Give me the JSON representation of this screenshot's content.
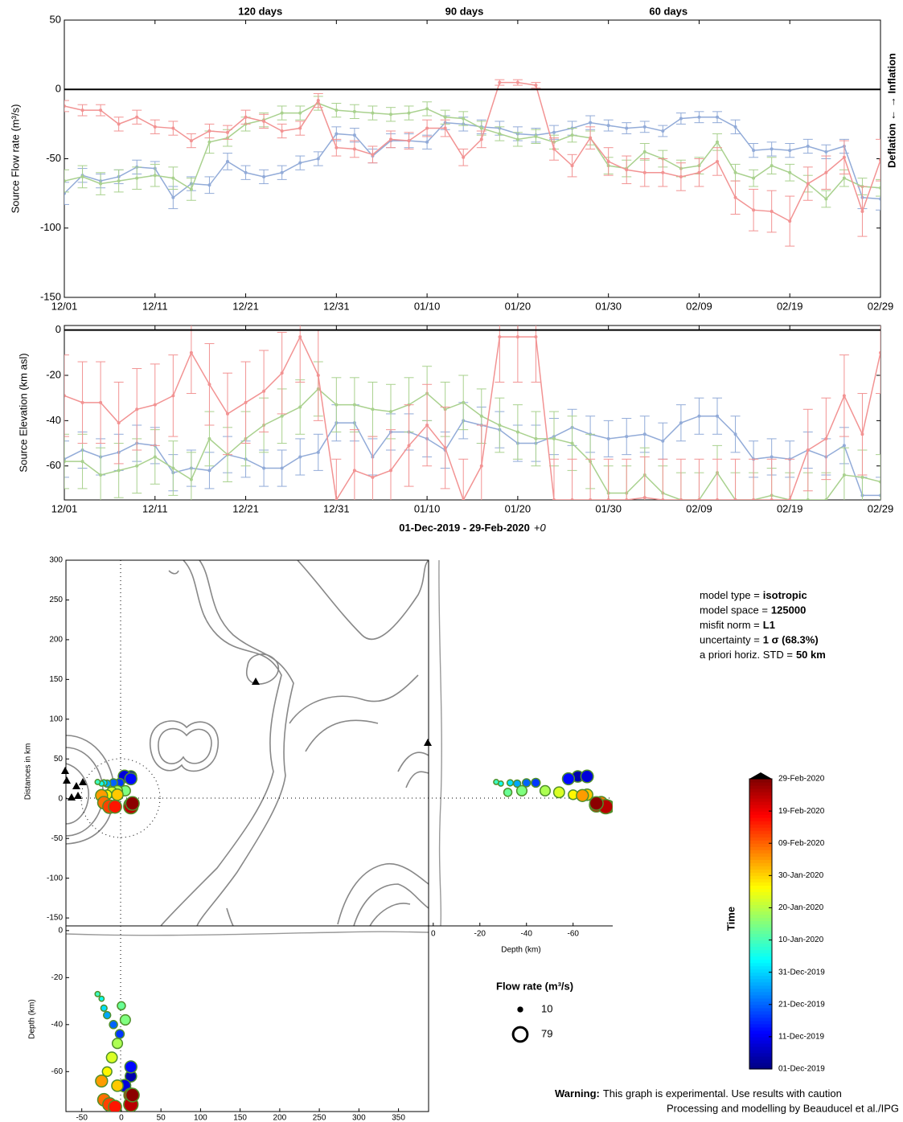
{
  "chart_data": [
    {
      "type": "line",
      "ylabel": "Source Flow rate (m³/s)",
      "right_label": "Deflation ← → Inflation",
      "zero_line": true,
      "xlim": [
        "2019-12-01",
        "2020-02-29"
      ],
      "xticks": [
        {
          "value": "2019-12-01",
          "label": "12/01"
        },
        {
          "value": "2019-12-11",
          "label": "12/11"
        },
        {
          "value": "2019-12-21",
          "label": "12/21"
        },
        {
          "value": "2019-12-31",
          "label": "12/31"
        },
        {
          "value": "2020-01-10",
          "label": "01/10"
        },
        {
          "value": "2020-01-20",
          "label": "01/20"
        },
        {
          "value": "2020-01-30",
          "label": "01/30"
        },
        {
          "value": "2020-02-09",
          "label": "02/09"
        },
        {
          "value": "2020-02-19",
          "label": "02/19"
        },
        {
          "value": "2020-02-29",
          "label": "02/29"
        }
      ],
      "ylim": [
        -150,
        50
      ],
      "yticks": [
        50,
        0,
        -50,
        -100,
        -150
      ],
      "x": [
        "2019-12-01",
        "2019-12-03",
        "2019-12-05",
        "2019-12-07",
        "2019-12-09",
        "2019-12-11",
        "2019-12-13",
        "2019-12-15",
        "2019-12-17",
        "2019-12-19",
        "2019-12-21",
        "2019-12-23",
        "2019-12-25",
        "2019-12-27",
        "2019-12-29",
        "2019-12-31",
        "2020-01-02",
        "2020-01-04",
        "2020-01-06",
        "2020-01-08",
        "2020-01-10",
        "2020-01-12",
        "2020-01-14",
        "2020-01-16",
        "2020-01-18",
        "2020-01-20",
        "2020-01-22",
        "2020-01-24",
        "2020-01-26",
        "2020-01-28",
        "2020-01-30",
        "2020-02-01",
        "2020-02-03",
        "2020-02-05",
        "2020-02-07",
        "2020-02-09",
        "2020-02-11",
        "2020-02-13",
        "2020-02-15",
        "2020-02-17",
        "2020-02-19",
        "2020-02-21",
        "2020-02-23",
        "2020-02-25",
        "2020-02-27",
        "2020-02-29"
      ],
      "series": [
        {
          "name": "120 days",
          "color": "#92abd8",
          "label_color": "#3a62a8",
          "values": [
            -75,
            -62,
            -66,
            -63,
            -56,
            -57,
            -78,
            -68,
            -69,
            -52,
            -60,
            -63,
            -60,
            -53,
            -50,
            -32,
            -33,
            -48,
            -37,
            -37,
            -38,
            -24,
            -25,
            -27,
            -28,
            -32,
            -33,
            -31,
            -28,
            -24,
            -26,
            -28,
            -27,
            -30,
            -21,
            -20,
            -20,
            -27,
            -44,
            -43,
            -44,
            -41,
            -45,
            -41,
            -78,
            -79
          ],
          "errors": [
            8,
            5,
            5,
            5,
            5,
            5,
            8,
            5,
            6,
            6,
            5,
            5,
            5,
            5,
            5,
            5,
            5,
            5,
            5,
            5,
            5,
            5,
            5,
            5,
            5,
            5,
            5,
            5,
            5,
            5,
            4,
            4,
            4,
            4,
            4,
            4,
            4,
            5,
            5,
            5,
            5,
            5,
            5,
            5,
            8,
            8
          ]
        },
        {
          "name": "90 days",
          "color": "#a9d18e",
          "label_color": "#5aa02c",
          "values": [
            -66,
            -63,
            -68,
            -66,
            -64,
            -62,
            -64,
            -72,
            -38,
            -35,
            -25,
            -22,
            -17,
            -17,
            -10,
            -15,
            -16,
            -17,
            -18,
            -17,
            -14,
            -20,
            -21,
            -28,
            -32,
            -36,
            -34,
            -38,
            -33,
            -35,
            -55,
            -57,
            -45,
            -50,
            -57,
            -55,
            -38,
            -60,
            -64,
            -55,
            -60,
            -68,
            -79,
            -64,
            -70,
            -71
          ],
          "errors": [
            8,
            8,
            8,
            8,
            8,
            8,
            8,
            8,
            8,
            6,
            5,
            5,
            5,
            5,
            5,
            5,
            5,
            5,
            5,
            5,
            5,
            5,
            5,
            5,
            5,
            5,
            5,
            5,
            5,
            5,
            6,
            6,
            6,
            6,
            6,
            6,
            6,
            6,
            6,
            6,
            6,
            6,
            6,
            6,
            6,
            6
          ]
        },
        {
          "name": "60 days",
          "color": "#f29393",
          "label_color": "#d62020",
          "values": [
            -12,
            -15,
            -15,
            -25,
            -20,
            -27,
            -28,
            -37,
            -30,
            -31,
            -20,
            -23,
            -30,
            -28,
            -8,
            -42,
            -43,
            -47,
            -36,
            -37,
            -28,
            -28,
            -49,
            -36,
            5,
            5,
            3,
            -43,
            -55,
            -35,
            -52,
            -58,
            -60,
            -60,
            -63,
            -60,
            -52,
            -78,
            -87,
            -88,
            -95,
            -68,
            -60,
            -49,
            -88,
            -51
          ],
          "errors": [
            4,
            4,
            4,
            5,
            5,
            5,
            5,
            5,
            5,
            5,
            5,
            5,
            5,
            5,
            5,
            6,
            6,
            6,
            6,
            6,
            6,
            6,
            6,
            6,
            2,
            2,
            2,
            8,
            8,
            8,
            10,
            10,
            10,
            10,
            10,
            10,
            10,
            12,
            15,
            15,
            18,
            12,
            12,
            12,
            18,
            15
          ]
        }
      ]
    },
    {
      "type": "line",
      "ylabel": "Source Elevation (km asl)",
      "xlabel": "01-Dec-2019 - 29-Feb-2020",
      "xlabel_suffix": "+0",
      "zero_line": true,
      "xlim": [
        "2019-12-01",
        "2020-02-29"
      ],
      "xticks": [
        {
          "value": "2019-12-01",
          "label": "12/01"
        },
        {
          "value": "2019-12-11",
          "label": "12/11"
        },
        {
          "value": "2019-12-21",
          "label": "12/21"
        },
        {
          "value": "2019-12-31",
          "label": "12/31"
        },
        {
          "value": "2020-01-10",
          "label": "01/10"
        },
        {
          "value": "2020-01-20",
          "label": "01/20"
        },
        {
          "value": "2020-01-30",
          "label": "01/30"
        },
        {
          "value": "2020-02-09",
          "label": "02/09"
        },
        {
          "value": "2020-02-19",
          "label": "02/19"
        },
        {
          "value": "2020-02-29",
          "label": "02/29"
        }
      ],
      "ylim": [
        -75,
        2
      ],
      "yticks": [
        0,
        -20,
        -40,
        -60
      ],
      "x": [
        "2019-12-01",
        "2019-12-03",
        "2019-12-05",
        "2019-12-07",
        "2019-12-09",
        "2019-12-11",
        "2019-12-13",
        "2019-12-15",
        "2019-12-17",
        "2019-12-19",
        "2019-12-21",
        "2019-12-23",
        "2019-12-25",
        "2019-12-27",
        "2019-12-29",
        "2019-12-31",
        "2020-01-02",
        "2020-01-04",
        "2020-01-06",
        "2020-01-08",
        "2020-01-10",
        "2020-01-12",
        "2020-01-14",
        "2020-01-16",
        "2020-01-18",
        "2020-01-20",
        "2020-01-22",
        "2020-01-24",
        "2020-01-26",
        "2020-01-28",
        "2020-01-30",
        "2020-02-01",
        "2020-02-03",
        "2020-02-05",
        "2020-02-07",
        "2020-02-09",
        "2020-02-11",
        "2020-02-13",
        "2020-02-15",
        "2020-02-17",
        "2020-02-19",
        "2020-02-21",
        "2020-02-23",
        "2020-02-25",
        "2020-02-27",
        "2020-02-29"
      ],
      "series": [
        {
          "color": "#92abd8",
          "values": [
            -57,
            -53,
            -56,
            -54,
            -50,
            -51,
            -63,
            -61,
            -62,
            -55,
            -57,
            -61,
            -61,
            -56,
            -54,
            -41,
            -41,
            -56,
            -45,
            -45,
            -48,
            -53,
            -40,
            -42,
            -44,
            -50,
            -50,
            -47,
            -43,
            -46,
            -48,
            -47,
            -46,
            -49,
            -41,
            -38,
            -38,
            -46,
            -57,
            -56,
            -57,
            -53,
            -56,
            -51,
            -73,
            -73
          ],
          "errors": [
            8,
            8,
            8,
            8,
            8,
            8,
            8,
            8,
            8,
            8,
            8,
            8,
            8,
            8,
            8,
            8,
            8,
            8,
            8,
            8,
            8,
            8,
            8,
            8,
            8,
            8,
            8,
            8,
            8,
            8,
            8,
            8,
            8,
            8,
            8,
            8,
            8,
            8,
            8,
            8,
            8,
            8,
            8,
            8,
            8,
            8
          ]
        },
        {
          "color": "#a9d18e",
          "values": [
            -58,
            -58,
            -64,
            -62,
            -60,
            -56,
            -61,
            -66,
            -48,
            -55,
            -48,
            -42,
            -38,
            -34,
            -26,
            -33,
            -33,
            -35,
            -36,
            -33,
            -28,
            -35,
            -32,
            -38,
            -42,
            -45,
            -48,
            -48,
            -50,
            -58,
            -72,
            -72,
            -64,
            -72,
            -75,
            -75,
            -63,
            -75,
            -75,
            -73,
            -75,
            -75,
            -75,
            -64,
            -65,
            -67
          ],
          "errors": [
            12,
            12,
            12,
            12,
            12,
            12,
            12,
            12,
            12,
            12,
            12,
            12,
            12,
            12,
            12,
            12,
            12,
            12,
            12,
            12,
            12,
            12,
            12,
            12,
            12,
            12,
            12,
            12,
            12,
            12,
            12,
            12,
            12,
            12,
            12,
            12,
            12,
            12,
            12,
            12,
            12,
            12,
            12,
            12,
            12,
            12
          ]
        },
        {
          "color": "#f29393",
          "values": [
            -29,
            -32,
            -32,
            -41,
            -35,
            -33,
            -29,
            -10,
            -24,
            -37,
            -32,
            -27,
            -19,
            -3,
            -20,
            -75,
            -62,
            -65,
            -62,
            -51,
            -42,
            -52,
            -75,
            -60,
            -3,
            -3,
            -3,
            -75,
            -75,
            -75,
            -75,
            -75,
            -74,
            -75,
            -75,
            -75,
            -75,
            -75,
            -75,
            -75,
            -75,
            -53,
            -48,
            -29,
            -46,
            -10
          ],
          "errors": [
            18,
            18,
            18,
            18,
            18,
            18,
            18,
            18,
            18,
            18,
            18,
            18,
            18,
            20,
            20,
            18,
            18,
            18,
            18,
            18,
            18,
            18,
            18,
            18,
            20,
            20,
            20,
            18,
            18,
            18,
            18,
            18,
            18,
            18,
            18,
            18,
            18,
            18,
            18,
            18,
            18,
            18,
            18,
            18,
            18,
            18
          ]
        }
      ]
    },
    {
      "type": "bubble_map",
      "ylabel": "Distances in km",
      "zlabel_right": "Depth (km)",
      "zlabel_bottom": "Depth (km)",
      "xlim": [
        -70,
        388
      ],
      "xticks": [
        -50,
        0,
        50,
        100,
        150,
        200,
        250,
        300,
        350
      ],
      "ylim": [
        -160,
        300
      ],
      "yticks": [
        300,
        250,
        200,
        150,
        100,
        50,
        0,
        -50,
        -100,
        -150
      ],
      "zlim": [
        -77,
        2
      ],
      "zticks": [
        0,
        -20,
        -40,
        -60
      ],
      "size_label": "Flow rate (m³/s)",
      "size_legend": [
        10,
        79
      ],
      "colorbar": {
        "label": "Time",
        "colormap": "jet",
        "clim": [
          "2019-12-01",
          "2020-02-29"
        ],
        "ticks": [
          {
            "value": "2019-12-01",
            "label": "01-Dec-2019"
          },
          {
            "value": "2019-12-11",
            "label": "11-Dec-2019"
          },
          {
            "value": "2019-12-21",
            "label": "21-Dec-2019"
          },
          {
            "value": "2019-12-31",
            "label": "31-Dec-2019"
          },
          {
            "value": "2020-01-10",
            "label": "10-Jan-2020"
          },
          {
            "value": "2020-01-20",
            "label": "20-Jan-2020"
          },
          {
            "value": "2020-01-30",
            "label": "30-Jan-2020"
          },
          {
            "value": "2020-02-09",
            "label": "09-Feb-2020"
          },
          {
            "value": "2020-02-19",
            "label": "19-Feb-2020"
          },
          {
            "value": "2020-02-29",
            "label": "29-Feb-2020"
          }
        ]
      },
      "sources": {
        "date": [
          "2019-12-05",
          "2019-12-09",
          "2019-12-13",
          "2019-12-17",
          "2019-12-21",
          "2019-12-27",
          "2020-01-01",
          "2020-01-05",
          "2020-01-09",
          "2020-01-13",
          "2020-01-15",
          "2020-01-19",
          "2020-01-23",
          "2020-01-27",
          "2020-01-31",
          "2020-02-04",
          "2020-02-08",
          "2020-02-12",
          "2020-02-16",
          "2020-02-20",
          "2020-02-24",
          "2020-02-28"
        ],
        "x": [
          12,
          4,
          12,
          -2,
          -10,
          -18,
          -22,
          -25,
          -30,
          0,
          5,
          -5,
          -12,
          -18,
          -5,
          -25,
          -22,
          -15,
          -8,
          12,
          12,
          14
        ],
        "y": [
          28,
          28,
          25,
          20,
          20,
          19,
          20,
          19,
          21,
          8,
          10,
          10,
          8,
          5,
          5,
          4,
          -5,
          -10,
          -10,
          -8,
          -10,
          -6
        ],
        "depth": [
          -62,
          -66,
          -58,
          -44,
          -40,
          -36,
          -33,
          -29,
          -27,
          -32,
          -38,
          -48,
          -54,
          -60,
          -66,
          -64,
          -72,
          -74,
          -75,
          -70,
          -74,
          -70
        ],
        "flow": [
          50,
          60,
          55,
          30,
          25,
          20,
          15,
          10,
          10,
          25,
          40,
          40,
          45,
          35,
          50,
          55,
          60,
          70,
          65,
          75,
          79,
          70
        ]
      }
    }
  ],
  "info": [
    {
      "label": "model type =",
      "value": "isotropic"
    },
    {
      "label": "model space =",
      "value": "125000"
    },
    {
      "label": "misfit norm =",
      "value": "L1"
    },
    {
      "label": "uncertainty =",
      "value": "1 σ (68.3%)"
    },
    {
      "label": "a priori horiz. STD =",
      "value": "50 km"
    }
  ],
  "footer": {
    "warning_label": "Warning:",
    "warning_text": "This graph is experimental. Use results with caution",
    "credit": "Processing and modelling by Beauducel et al./IPG"
  }
}
